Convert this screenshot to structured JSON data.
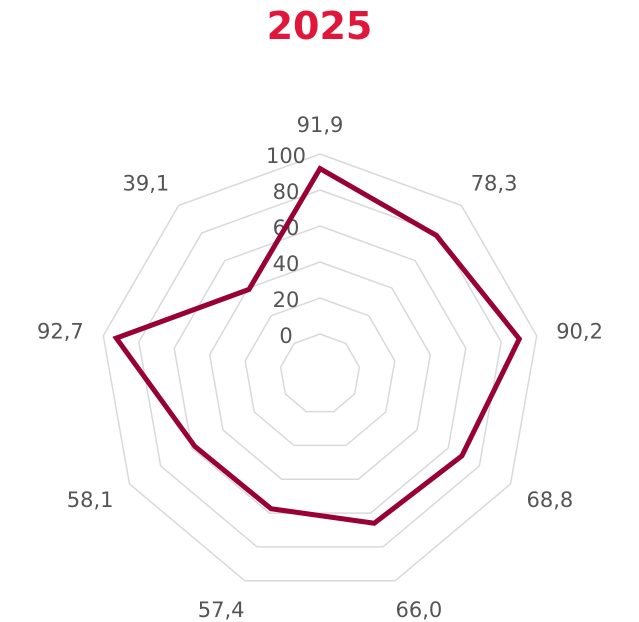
{
  "chart_data": {
    "type": "radar",
    "title": "2025",
    "title_color": "#e0173b",
    "categories": [
      "91,9",
      "78,3",
      "90,2",
      "68,8",
      "66,0",
      "57,4",
      "58,1",
      "92,7",
      "39,1"
    ],
    "series": [
      {
        "values": [
          91.9,
          78.3,
          90.2,
          68.8,
          66.0,
          57.4,
          58.1,
          92.7,
          39.1
        ],
        "color": "#990033"
      }
    ],
    "radial_ticks": [
      "0",
      "20",
      "40",
      "60",
      "80",
      "100"
    ],
    "rlim": [
      0,
      100
    ],
    "grid_color": "#d9d9d9",
    "legend": "none"
  }
}
